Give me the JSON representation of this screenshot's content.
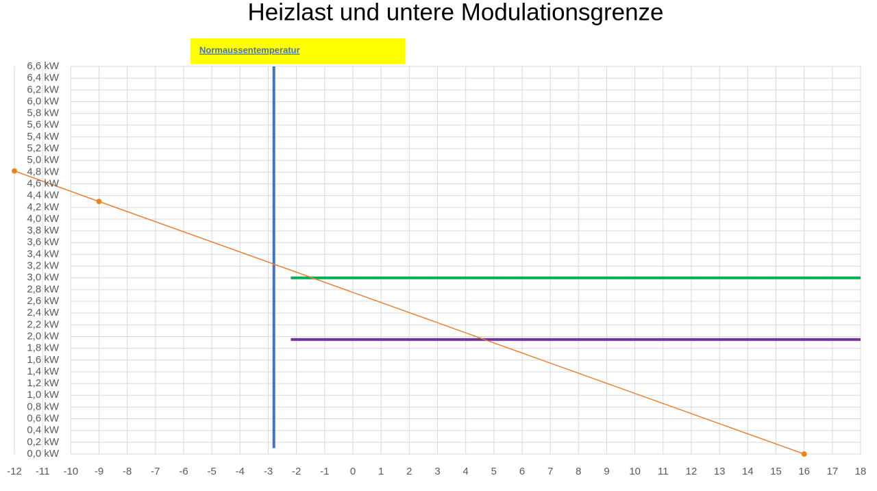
{
  "chart_data": {
    "type": "line",
    "title": "Heizlast und untere Modulationsgrenze",
    "annotation": "Normaussentemperatur",
    "xlim": [
      -12,
      18
    ],
    "xticks": [
      -12,
      -11,
      -10,
      -9,
      -8,
      -7,
      -6,
      -5,
      -4,
      -3,
      -2,
      -1,
      0,
      1,
      2,
      3,
      4,
      5,
      6,
      7,
      8,
      9,
      10,
      11,
      12,
      13,
      14,
      15,
      16,
      17,
      18
    ],
    "ylim": [
      0,
      6.6
    ],
    "yticks": [
      {
        "value": 0,
        "label": "0,0 kW"
      },
      {
        "value": 0.2,
        "label": "0,2 kW"
      },
      {
        "value": 0.4,
        "label": "0,4 kW"
      },
      {
        "value": 0.6,
        "label": "0,6 kW"
      },
      {
        "value": 0.8,
        "label": "0,8 kW"
      },
      {
        "value": 1,
        "label": "1,0 kW"
      },
      {
        "value": 1.2,
        "label": "1,2 kW"
      },
      {
        "value": 1.4,
        "label": "1,4 kW"
      },
      {
        "value": 1.6,
        "label": "1,6 kW"
      },
      {
        "value": 1.8,
        "label": "1,8 kW"
      },
      {
        "value": 2,
        "label": "2,0 kW"
      },
      {
        "value": 2.2,
        "label": "2,2 kW"
      },
      {
        "value": 2.4,
        "label": "2,4 kW"
      },
      {
        "value": 2.6,
        "label": "2,6 kW"
      },
      {
        "value": 2.8,
        "label": "2,8 kW"
      },
      {
        "value": 3,
        "label": "3,0 kW"
      },
      {
        "value": 3.2,
        "label": "3,2 kW"
      },
      {
        "value": 3.4,
        "label": "3,4 kW"
      },
      {
        "value": 3.6,
        "label": "3,6 kW"
      },
      {
        "value": 3.8,
        "label": "3,8 kW"
      },
      {
        "value": 4,
        "label": "4,0 kW"
      },
      {
        "value": 4.2,
        "label": "4,2 kW"
      },
      {
        "value": 4.4,
        "label": "4,4 kW"
      },
      {
        "value": 4.6,
        "label": "4,6 kW"
      },
      {
        "value": 4.8,
        "label": "4,8 kW"
      },
      {
        "value": 5,
        "label": "5,0 kW"
      },
      {
        "value": 5.2,
        "label": "5,2 kW"
      },
      {
        "value": 5.4,
        "label": "5,4 kW"
      },
      {
        "value": 5.6,
        "label": "5,6 kW"
      },
      {
        "value": 5.8,
        "label": "5,8 kW"
      },
      {
        "value": 6,
        "label": "6,0 kW"
      },
      {
        "value": 6.2,
        "label": "6,2 kW"
      },
      {
        "value": 6.4,
        "label": "6,4 kW"
      },
      {
        "value": 6.6,
        "label": "6,6 kW"
      }
    ],
    "grid": true,
    "series": [
      {
        "color": "#4472c4",
        "width": 4,
        "x": [
          -2.8,
          -2.8
        ],
        "values": [
          0.1,
          6.6
        ]
      },
      {
        "color": "#00b050",
        "width": 4,
        "x": [
          -2.2,
          18
        ],
        "values": [
          3,
          3
        ]
      },
      {
        "color": "#7030a0",
        "width": 4,
        "x": [
          -2.2,
          18
        ],
        "values": [
          1.95,
          1.95
        ]
      },
      {
        "color": "#ed7d31",
        "width": 1.5,
        "markers": true,
        "x": [
          -12,
          -9,
          16
        ],
        "values": [
          4.82,
          4.3,
          0
        ]
      }
    ]
  }
}
